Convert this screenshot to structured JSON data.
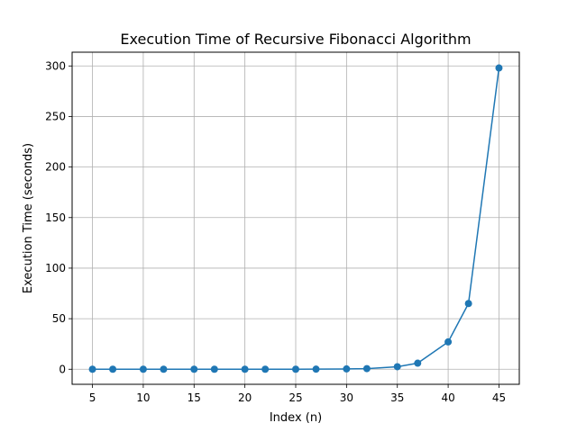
{
  "chart_data": {
    "type": "line",
    "title": "Execution Time of Recursive Fibonacci Algorithm",
    "xlabel": "Index (n)",
    "ylabel": "Execution Time (seconds)",
    "xlim": [
      3,
      47
    ],
    "ylim": [
      -14.9,
      313.6
    ],
    "xticks": [
      5,
      10,
      15,
      20,
      25,
      30,
      35,
      40,
      45
    ],
    "yticks": [
      0,
      50,
      100,
      150,
      200,
      250,
      300
    ],
    "grid": true,
    "series": [
      {
        "color": "#1f77b4",
        "marker": "circle",
        "x": [
          5,
          7,
          10,
          12,
          15,
          17,
          20,
          22,
          25,
          27,
          30,
          32,
          35,
          37,
          40,
          42,
          45
        ],
        "y": [
          0,
          0,
          0,
          0,
          0,
          0,
          0,
          0,
          0,
          0.1,
          0.3,
          0.6,
          2.5,
          6.0,
          27.0,
          65.0,
          298.0
        ]
      }
    ]
  }
}
